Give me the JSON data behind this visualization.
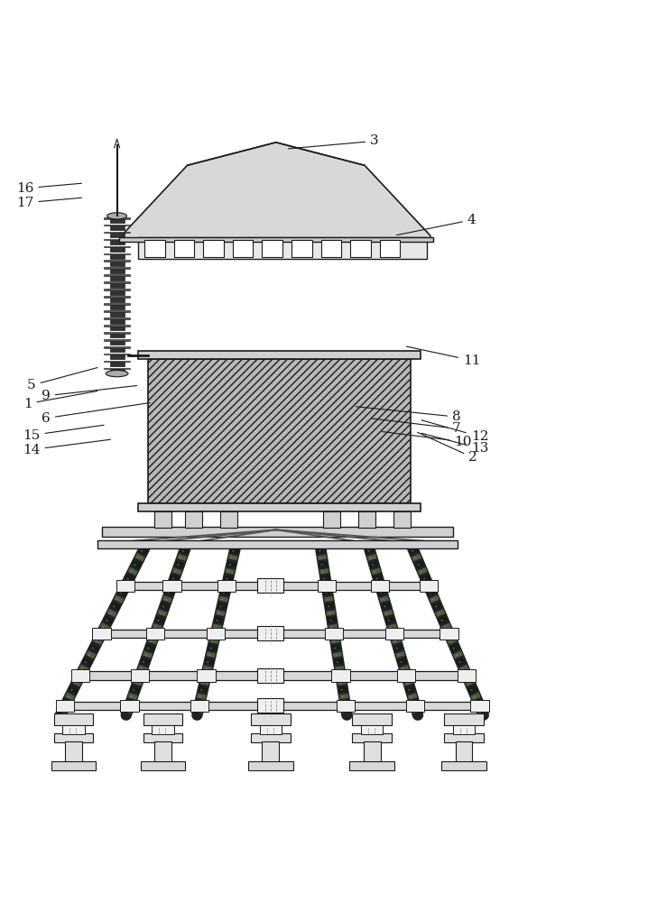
{
  "bg_color": "#ffffff",
  "line_color": "#1a1a1a",
  "dark_gray": "#333333",
  "mid_gray": "#888888",
  "light_gray": "#cccccc",
  "fill_gray": "#b0b0b0",
  "coil_dark": "#2a2a2a",
  "coil_green": "#4a6a4a"
}
